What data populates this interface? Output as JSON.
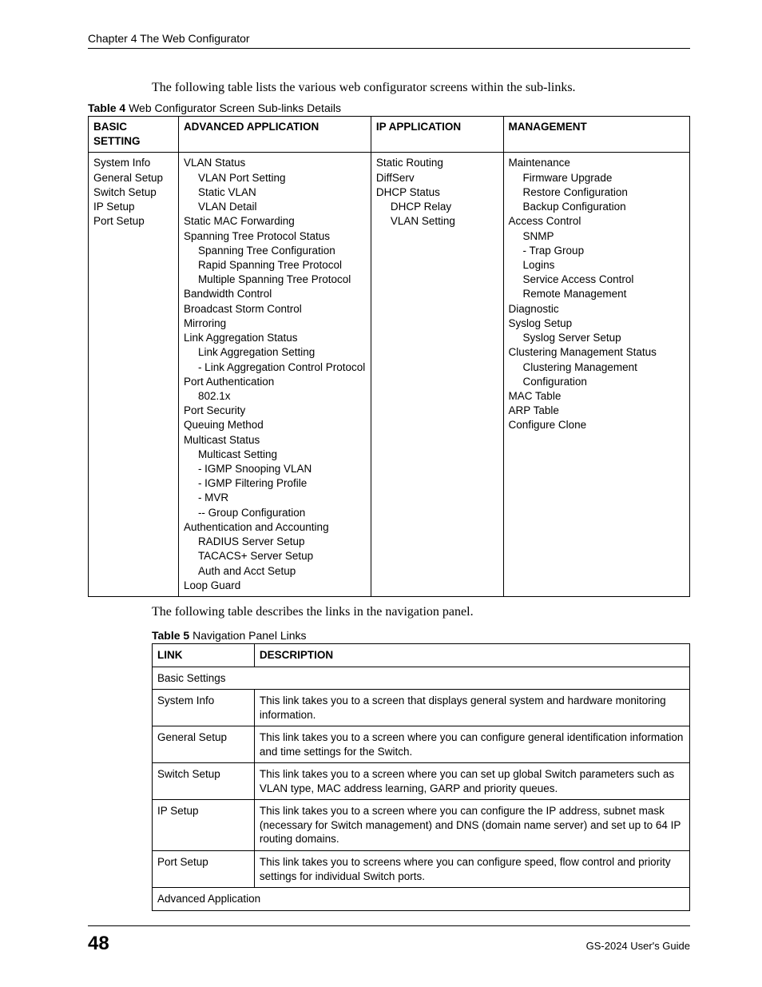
{
  "header": {
    "chapter": "Chapter 4 The Web Configurator"
  },
  "intro1": "The following table lists the various web configurator screens within the sub-links.",
  "table4": {
    "caption_bold": "Table 4",
    "caption_rest": "   Web Configurator Screen Sub-links Details",
    "headers": [
      "BASIC SETTING",
      "ADVANCED APPLICATION",
      "IP APPLICATION",
      "MANAGEMENT"
    ],
    "basic": [
      "System Info",
      "General Setup",
      "Switch Setup",
      "IP Setup",
      "Port Setup"
    ],
    "advanced": [
      {
        "t": "VLAN Status",
        "i": 0
      },
      {
        "t": "VLAN Port Setting",
        "i": 1
      },
      {
        "t": "Static VLAN",
        "i": 1
      },
      {
        "t": "VLAN Detail",
        "i": 1
      },
      {
        "t": "Static MAC Forwarding",
        "i": 0
      },
      {
        "t": "Spanning Tree Protocol Status",
        "i": 0
      },
      {
        "t": "Spanning Tree Configuration",
        "i": 1
      },
      {
        "t": "Rapid Spanning Tree Protocol",
        "i": 1
      },
      {
        "t": "Multiple Spanning Tree Protocol",
        "i": 1
      },
      {
        "t": "Bandwidth Control",
        "i": 0
      },
      {
        "t": "Broadcast Storm Control",
        "i": 0
      },
      {
        "t": "Mirroring",
        "i": 0
      },
      {
        "t": "Link Aggregation Status",
        "i": 0
      },
      {
        "t": "Link Aggregation Setting",
        "i": 1
      },
      {
        "t": "- Link Aggregation Control Protocol",
        "i": 1
      },
      {
        "t": "Port Authentication",
        "i": 0
      },
      {
        "t": "802.1x",
        "i": 1
      },
      {
        "t": "Port Security",
        "i": 0
      },
      {
        "t": "Queuing Method",
        "i": 0
      },
      {
        "t": "Multicast Status",
        "i": 0
      },
      {
        "t": "Multicast Setting",
        "i": 1
      },
      {
        "t": "- IGMP Snooping VLAN",
        "i": 1
      },
      {
        "t": "- IGMP Filtering Profile",
        "i": 1
      },
      {
        "t": "- MVR",
        "i": 1
      },
      {
        "t": "-- Group Configuration",
        "i": 1
      },
      {
        "t": "Authentication and Accounting",
        "i": 0
      },
      {
        "t": "RADIUS Server Setup",
        "i": 1
      },
      {
        "t": "TACACS+ Server Setup",
        "i": 1
      },
      {
        "t": "Auth and Acct Setup",
        "i": 1
      },
      {
        "t": "Loop Guard",
        "i": 0
      }
    ],
    "ip": [
      {
        "t": "Static Routing",
        "i": 0
      },
      {
        "t": "DiffServ",
        "i": 0
      },
      {
        "t": "DHCP Status",
        "i": 0
      },
      {
        "t": "DHCP Relay",
        "i": 1
      },
      {
        "t": "VLAN Setting",
        "i": 1
      }
    ],
    "mgmt": [
      {
        "t": "Maintenance",
        "i": 0
      },
      {
        "t": "Firmware Upgrade",
        "i": 1
      },
      {
        "t": "Restore Configuration",
        "i": 1
      },
      {
        "t": "Backup Configuration",
        "i": 1
      },
      {
        "t": "Access Control",
        "i": 0
      },
      {
        "t": "SNMP",
        "i": 1
      },
      {
        "t": "- Trap Group",
        "i": 1
      },
      {
        "t": "Logins",
        "i": 1
      },
      {
        "t": "Service Access Control",
        "i": 1
      },
      {
        "t": "Remote Management",
        "i": 1
      },
      {
        "t": "Diagnostic",
        "i": 0
      },
      {
        "t": "Syslog Setup",
        "i": 0
      },
      {
        "t": "Syslog Server Setup",
        "i": 1
      },
      {
        "t": "Clustering Management Status",
        "i": 0
      },
      {
        "t": "Clustering Management Configuration",
        "i": 1
      },
      {
        "t": "MAC Table",
        "i": 0
      },
      {
        "t": "ARP Table",
        "i": 0
      },
      {
        "t": "Configure Clone",
        "i": 0
      }
    ]
  },
  "intro2": "The following table describes the links in the navigation panel.",
  "table5": {
    "caption_bold": "Table 5",
    "caption_rest": "   Navigation Panel Links",
    "headers": [
      "LINK",
      "DESCRIPTION"
    ],
    "section1": "Basic Settings",
    "rows": [
      [
        "System Info",
        "This link takes you to a screen that displays general system and hardware monitoring information."
      ],
      [
        "General Setup",
        "This link takes you to a screen where you can configure general identification information and time settings for the Switch."
      ],
      [
        "Switch Setup",
        "This link takes you to a screen where you can set up global Switch parameters such as VLAN type, MAC address learning, GARP and priority queues."
      ],
      [
        "IP Setup",
        "This link takes you to a screen where you can configure the IP address, subnet mask (necessary for Switch management) and DNS (domain name server) and set up to 64 IP routing domains."
      ],
      [
        "Port Setup",
        "This link takes you to screens where you can configure speed, flow control and priority settings for individual Switch ports."
      ]
    ],
    "section2": "Advanced Application"
  },
  "footer": {
    "page": "48",
    "guide": "GS-2024 User's Guide"
  }
}
